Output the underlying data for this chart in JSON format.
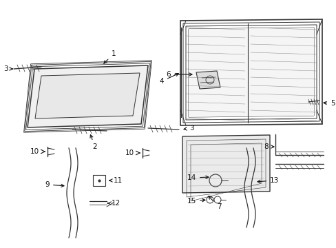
{
  "bg_color": "#ffffff",
  "lc": "#333333",
  "fig_w": 4.89,
  "fig_h": 3.6,
  "dpi": 100
}
